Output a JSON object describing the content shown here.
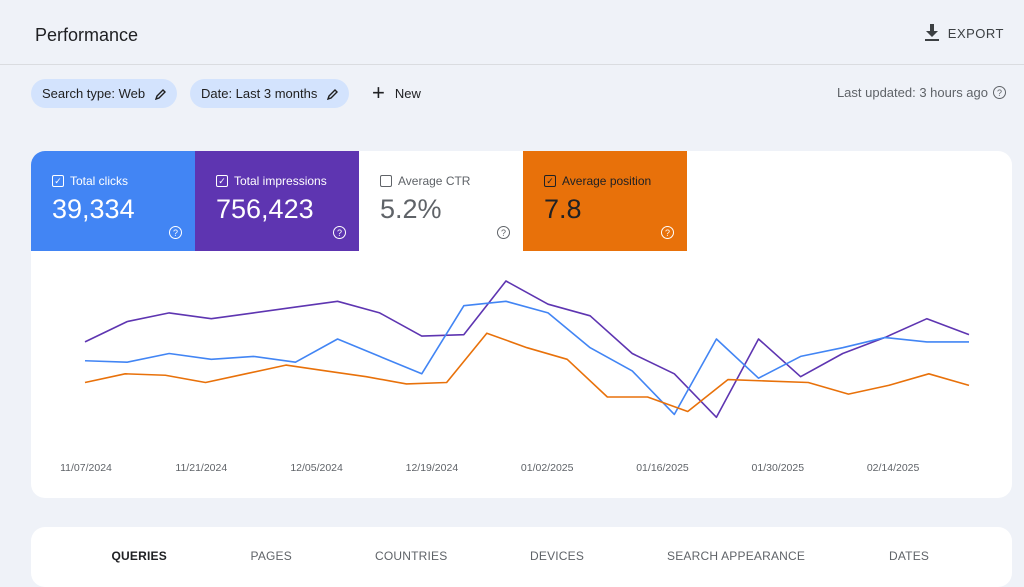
{
  "header": {
    "title": "Performance",
    "export_label": "EXPORT"
  },
  "filters": {
    "search_type": "Search type: Web",
    "date": "Date: Last 3 months",
    "new_label": "New",
    "last_updated": "Last updated: 3 hours ago"
  },
  "metrics": [
    {
      "label": "Total clicks",
      "value": "39,334",
      "checked": true,
      "color": "#4285f4"
    },
    {
      "label": "Total impressions",
      "value": "756,423",
      "checked": true,
      "color": "#5e35b1"
    },
    {
      "label": "Average CTR",
      "value": "5.2%",
      "checked": false,
      "color": "#ffffff"
    },
    {
      "label": "Average position",
      "value": "7.8",
      "checked": true,
      "color": "#e8710a"
    }
  ],
  "chart_data": {
    "type": "line",
    "x_tick_labels": [
      "11/07/2024",
      "11/21/2024",
      "12/05/2024",
      "12/19/2024",
      "01/02/2025",
      "01/16/2025",
      "01/30/2025",
      "02/14/2025"
    ],
    "y_scale": "relative (0 = bottom of plot, 100 = top), no y axis shown",
    "grid": false,
    "series": [
      {
        "name": "Total impressions",
        "color": "#5e35b1",
        "values": [
          58,
          72,
          78,
          74,
          78,
          82,
          86,
          78,
          62,
          63,
          100,
          84,
          76,
          50,
          36,
          6,
          60,
          34,
          50,
          61,
          74,
          63
        ]
      },
      {
        "name": "Total clicks",
        "color": "#4285f4",
        "values": [
          45,
          44,
          50,
          46,
          48,
          44,
          60,
          48,
          36,
          83,
          86,
          78,
          54,
          38,
          8,
          60,
          33,
          48,
          54,
          61,
          58,
          58
        ]
      },
      {
        "name": "Average position",
        "color": "#e8710a",
        "values": [
          30,
          36,
          35,
          30,
          36,
          42,
          38,
          34,
          29,
          30,
          64,
          54,
          46,
          20,
          20,
          10,
          32,
          31,
          30,
          22,
          28,
          36,
          28
        ]
      }
    ]
  },
  "tabs": [
    "QUERIES",
    "PAGES",
    "COUNTRIES",
    "DEVICES",
    "SEARCH APPEARANCE",
    "DATES"
  ],
  "active_tab": "QUERIES"
}
